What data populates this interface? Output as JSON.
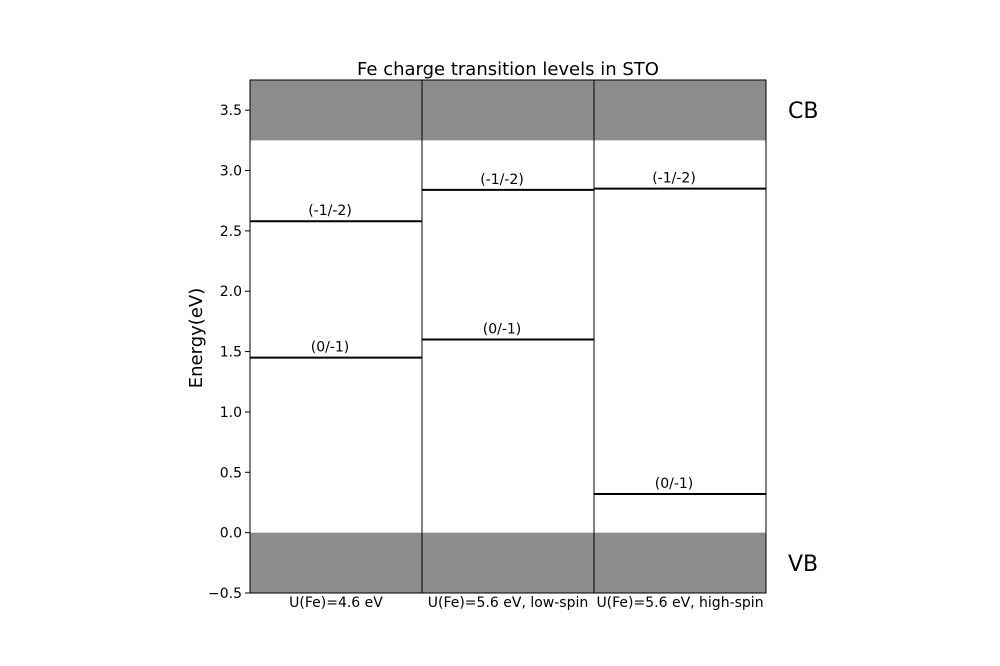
{
  "chart_data": {
    "type": "energy-level diagram",
    "title": "Fe charge transition levels in STO",
    "xlabel": "",
    "ylabel": "Energy(eV)",
    "ylim": [
      -0.5,
      3.75
    ],
    "yticks": [
      -0.5,
      0.0,
      0.5,
      1.0,
      1.5,
      2.0,
      2.5,
      3.0,
      3.5
    ],
    "ytick_labels": [
      "−0.5",
      "0.0",
      "0.5",
      "1.0",
      "1.5",
      "2.0",
      "2.5",
      "3.0",
      "3.5"
    ],
    "bands": [
      {
        "label": "CB",
        "from": 3.25,
        "to": 3.75,
        "color": "#8c8c8c"
      },
      {
        "label": "VB",
        "from": -0.5,
        "to": 0.0,
        "color": "#8c8c8c"
      }
    ],
    "categories": [
      "U(Fe)=4.6 eV",
      "U(Fe)=5.6 eV, low-spin",
      "U(Fe)=5.6 eV, high-spin"
    ],
    "series": [
      {
        "name": "(0/-1)",
        "values": [
          1.45,
          1.6,
          0.32
        ]
      },
      {
        "name": "(-1/-2)",
        "values": [
          2.58,
          2.84,
          2.85
        ]
      }
    ],
    "grid": false,
    "legend": "none"
  }
}
